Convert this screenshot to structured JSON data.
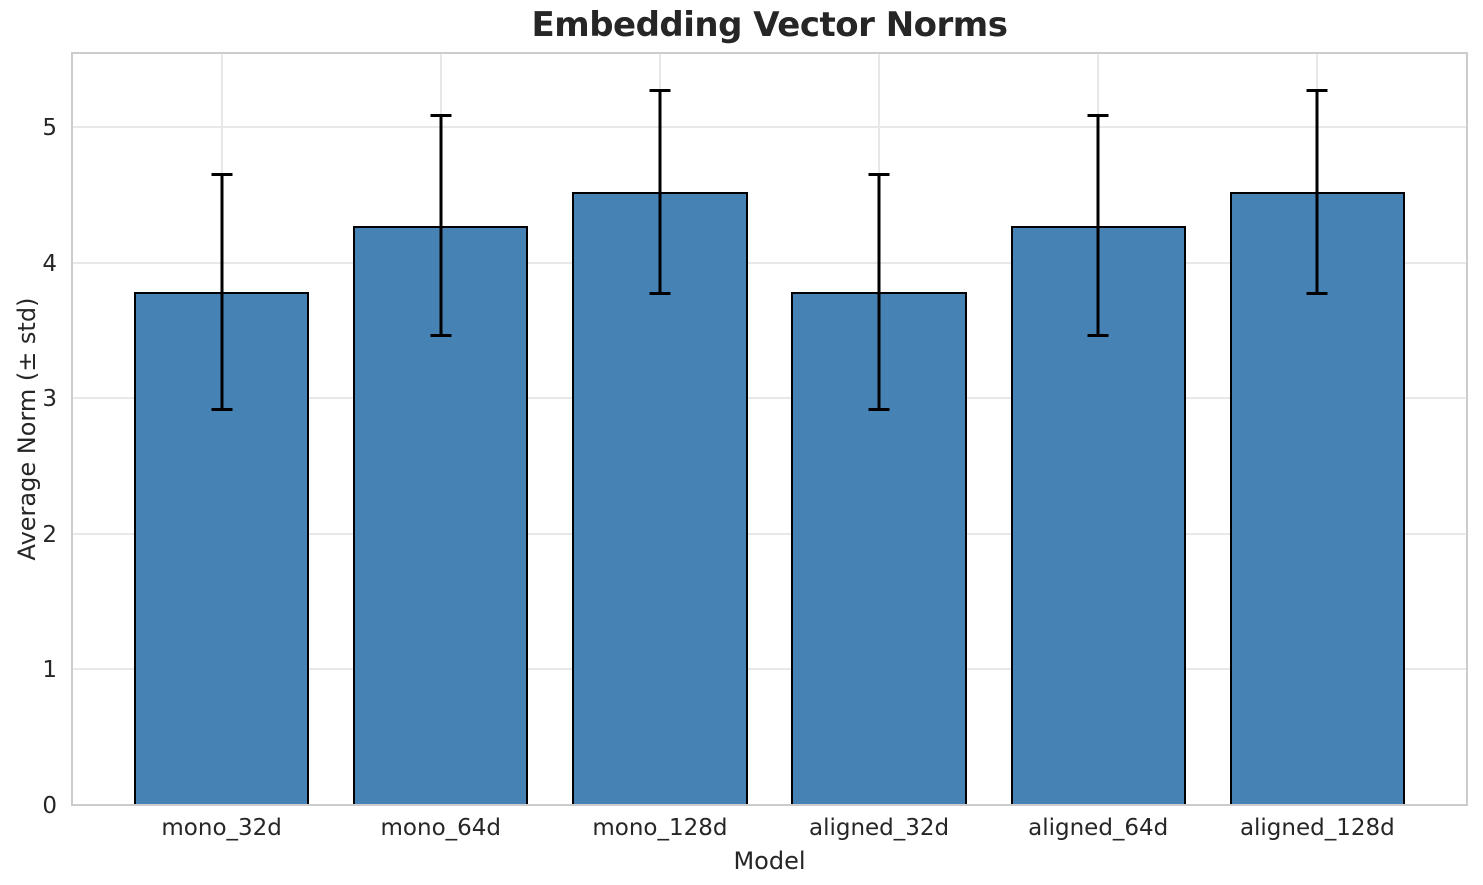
{
  "chart_data": {
    "type": "bar",
    "title": "Embedding Vector Norms",
    "xlabel": "Model",
    "ylabel": "Average Norm (± std)",
    "categories": [
      "mono_32d",
      "mono_64d",
      "mono_128d",
      "aligned_32d",
      "aligned_64d",
      "aligned_128d"
    ],
    "values": [
      3.79,
      4.28,
      4.53,
      3.79,
      4.28,
      4.53
    ],
    "errors": [
      0.88,
      0.82,
      0.76,
      0.88,
      0.82,
      0.76
    ],
    "yticks": [
      0,
      1,
      2,
      3,
      4,
      5
    ],
    "ylim": [
      0,
      5.56
    ],
    "grid": true,
    "legend_position": "none",
    "bar_color": "#4682B4",
    "bar_edge_color": "#000000",
    "error_color": "#000000",
    "grid_color": "#e8e8e8",
    "spine_color": "#cccccc",
    "text_color": "#262626",
    "background_color": "#ffffff"
  }
}
